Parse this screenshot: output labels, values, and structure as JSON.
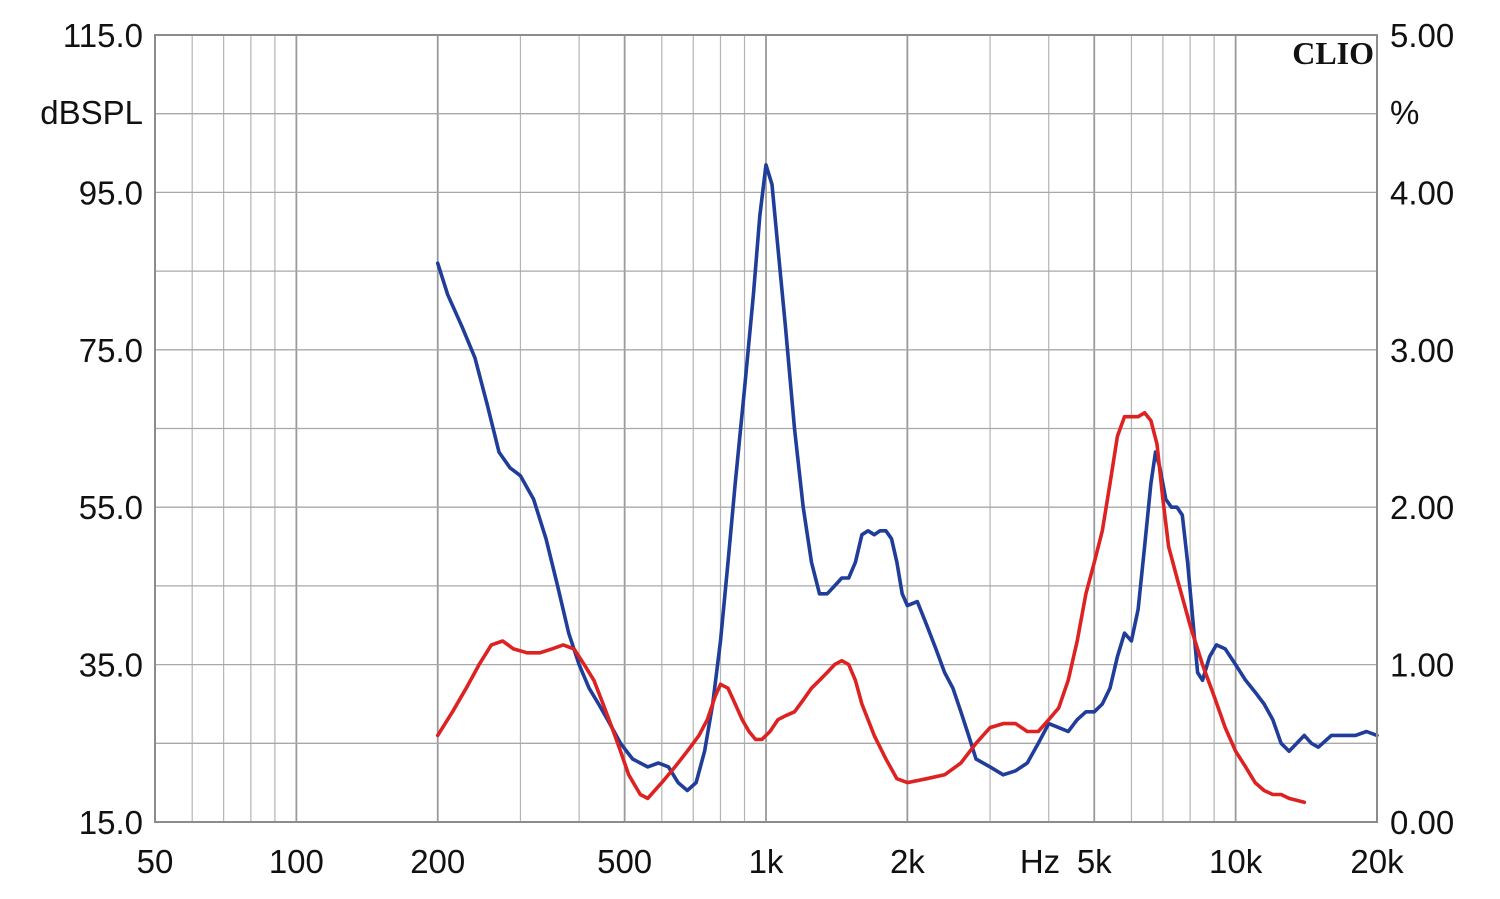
{
  "chart_data": {
    "type": "line",
    "brand": "CLIO",
    "xlabel": "Hz",
    "x_scale": "log",
    "xlim": [
      50,
      20000
    ],
    "x_ticks": [
      {
        "value": 50,
        "label": "50"
      },
      {
        "value": 100,
        "label": "100"
      },
      {
        "value": 200,
        "label": "200"
      },
      {
        "value": 500,
        "label": "500"
      },
      {
        "value": 1000,
        "label": "1k"
      },
      {
        "value": 2000,
        "label": "2k"
      },
      {
        "value": 5000,
        "label": "5k"
      },
      {
        "value": 10000,
        "label": "10k"
      },
      {
        "value": 20000,
        "label": "20k"
      }
    ],
    "y_left": {
      "label": "dBSPL",
      "lim": [
        15,
        115
      ],
      "ticks": [
        {
          "value": 15,
          "label": "15.0"
        },
        {
          "value": 35,
          "label": "35.0"
        },
        {
          "value": 55,
          "label": "55.0"
        },
        {
          "value": 75,
          "label": "75.0"
        },
        {
          "value": 95,
          "label": "95.0"
        },
        {
          "value": 115,
          "label": "115.0"
        }
      ]
    },
    "y_right": {
      "label": "%",
      "lim": [
        0,
        5
      ],
      "ticks": [
        {
          "value": 0,
          "label": "0.00"
        },
        {
          "value": 1,
          "label": "1.00"
        },
        {
          "value": 2,
          "label": "2.00"
        },
        {
          "value": 3,
          "label": "3.00"
        },
        {
          "value": 4,
          "label": "4.00"
        },
        {
          "value": 5,
          "label": "5.00"
        }
      ]
    },
    "grid": true,
    "series": [
      {
        "color": "#1f3d99",
        "axis": "left",
        "points": [
          [
            200,
            86
          ],
          [
            210,
            82
          ],
          [
            225,
            78
          ],
          [
            240,
            74
          ],
          [
            255,
            68
          ],
          [
            270,
            62
          ],
          [
            285,
            60
          ],
          [
            300,
            59
          ],
          [
            320,
            56
          ],
          [
            340,
            51
          ],
          [
            360,
            45
          ],
          [
            380,
            39
          ],
          [
            400,
            35
          ],
          [
            420,
            32
          ],
          [
            440,
            30
          ],
          [
            460,
            28
          ],
          [
            490,
            25
          ],
          [
            520,
            23
          ],
          [
            560,
            22
          ],
          [
            590,
            22.5
          ],
          [
            620,
            22
          ],
          [
            650,
            20
          ],
          [
            680,
            19
          ],
          [
            710,
            20
          ],
          [
            740,
            24
          ],
          [
            770,
            30
          ],
          [
            800,
            38
          ],
          [
            830,
            48
          ],
          [
            860,
            58
          ],
          [
            900,
            70
          ],
          [
            940,
            82
          ],
          [
            970,
            92
          ],
          [
            1000,
            98.5
          ],
          [
            1030,
            96
          ],
          [
            1060,
            88
          ],
          [
            1100,
            78
          ],
          [
            1150,
            65
          ],
          [
            1200,
            55
          ],
          [
            1250,
            48
          ],
          [
            1300,
            44
          ],
          [
            1350,
            44
          ],
          [
            1400,
            45
          ],
          [
            1450,
            46
          ],
          [
            1500,
            46
          ],
          [
            1550,
            48
          ],
          [
            1600,
            51.5
          ],
          [
            1650,
            52
          ],
          [
            1700,
            51.5
          ],
          [
            1750,
            52
          ],
          [
            1800,
            52
          ],
          [
            1850,
            51
          ],
          [
            1900,
            48
          ],
          [
            1950,
            44
          ],
          [
            2000,
            42.5
          ],
          [
            2100,
            43
          ],
          [
            2200,
            40
          ],
          [
            2300,
            37
          ],
          [
            2400,
            34
          ],
          [
            2500,
            32
          ],
          [
            2600,
            29
          ],
          [
            2700,
            26
          ],
          [
            2800,
            23
          ],
          [
            3000,
            22
          ],
          [
            3200,
            21
          ],
          [
            3400,
            21.5
          ],
          [
            3600,
            22.5
          ],
          [
            3800,
            25
          ],
          [
            4000,
            27.5
          ],
          [
            4200,
            27
          ],
          [
            4400,
            26.5
          ],
          [
            4600,
            28
          ],
          [
            4800,
            29
          ],
          [
            5000,
            29
          ],
          [
            5200,
            30
          ],
          [
            5400,
            32
          ],
          [
            5600,
            36
          ],
          [
            5800,
            39
          ],
          [
            6000,
            38
          ],
          [
            6200,
            42
          ],
          [
            6400,
            50
          ],
          [
            6600,
            58
          ],
          [
            6750,
            62
          ],
          [
            6900,
            60
          ],
          [
            7100,
            56
          ],
          [
            7300,
            55
          ],
          [
            7500,
            55
          ],
          [
            7700,
            54
          ],
          [
            7900,
            48
          ],
          [
            8100,
            41
          ],
          [
            8300,
            34
          ],
          [
            8500,
            33
          ],
          [
            8800,
            36
          ],
          [
            9100,
            37.5
          ],
          [
            9500,
            37
          ],
          [
            10000,
            35
          ],
          [
            10500,
            33
          ],
          [
            11000,
            31.5
          ],
          [
            11500,
            30
          ],
          [
            12000,
            28
          ],
          [
            12500,
            25
          ],
          [
            13000,
            24
          ],
          [
            13500,
            25
          ],
          [
            14000,
            26
          ],
          [
            14500,
            25
          ],
          [
            15000,
            24.5
          ],
          [
            16000,
            26
          ],
          [
            17000,
            26
          ],
          [
            18000,
            26
          ],
          [
            19000,
            26.5
          ],
          [
            20000,
            26
          ]
        ]
      },
      {
        "color": "#dd2222",
        "axis": "left",
        "points": [
          [
            200,
            26
          ],
          [
            215,
            29
          ],
          [
            230,
            32
          ],
          [
            245,
            35
          ],
          [
            260,
            37.5
          ],
          [
            275,
            38
          ],
          [
            290,
            37
          ],
          [
            310,
            36.5
          ],
          [
            330,
            36.5
          ],
          [
            350,
            37
          ],
          [
            370,
            37.5
          ],
          [
            390,
            37
          ],
          [
            410,
            35
          ],
          [
            430,
            33
          ],
          [
            450,
            30
          ],
          [
            470,
            27
          ],
          [
            490,
            24
          ],
          [
            510,
            21
          ],
          [
            540,
            18.5
          ],
          [
            560,
            18
          ],
          [
            600,
            20
          ],
          [
            640,
            22
          ],
          [
            680,
            24
          ],
          [
            720,
            26
          ],
          [
            750,
            28
          ],
          [
            780,
            31
          ],
          [
            800,
            32.5
          ],
          [
            830,
            32
          ],
          [
            860,
            30
          ],
          [
            890,
            28
          ],
          [
            920,
            26.5
          ],
          [
            950,
            25.5
          ],
          [
            980,
            25.5
          ],
          [
            1020,
            26.5
          ],
          [
            1060,
            28
          ],
          [
            1100,
            28.5
          ],
          [
            1150,
            29
          ],
          [
            1200,
            30.5
          ],
          [
            1250,
            32
          ],
          [
            1300,
            33
          ],
          [
            1350,
            34
          ],
          [
            1400,
            35
          ],
          [
            1450,
            35.5
          ],
          [
            1500,
            35
          ],
          [
            1550,
            33
          ],
          [
            1600,
            30
          ],
          [
            1700,
            26
          ],
          [
            1800,
            23
          ],
          [
            1900,
            20.5
          ],
          [
            2000,
            20
          ],
          [
            2200,
            20.5
          ],
          [
            2400,
            21
          ],
          [
            2600,
            22.5
          ],
          [
            2800,
            25
          ],
          [
            3000,
            27
          ],
          [
            3200,
            27.5
          ],
          [
            3400,
            27.5
          ],
          [
            3600,
            26.5
          ],
          [
            3800,
            26.5
          ],
          [
            4000,
            28
          ],
          [
            4200,
            29.5
          ],
          [
            4400,
            33
          ],
          [
            4600,
            38
          ],
          [
            4800,
            44
          ],
          [
            5000,
            48
          ],
          [
            5200,
            52
          ],
          [
            5400,
            58
          ],
          [
            5600,
            64
          ],
          [
            5800,
            66.5
          ],
          [
            6000,
            66.5
          ],
          [
            6200,
            66.5
          ],
          [
            6400,
            67
          ],
          [
            6600,
            66
          ],
          [
            6800,
            63
          ],
          [
            7000,
            56
          ],
          [
            7200,
            50
          ],
          [
            7500,
            46
          ],
          [
            8000,
            40
          ],
          [
            8500,
            35
          ],
          [
            9000,
            31
          ],
          [
            9500,
            27
          ],
          [
            10000,
            24
          ],
          [
            10500,
            22
          ],
          [
            11000,
            20
          ],
          [
            11500,
            19
          ],
          [
            12000,
            18.5
          ],
          [
            12500,
            18.5
          ],
          [
            13000,
            18
          ],
          [
            14000,
            17.5
          ]
        ]
      }
    ]
  }
}
